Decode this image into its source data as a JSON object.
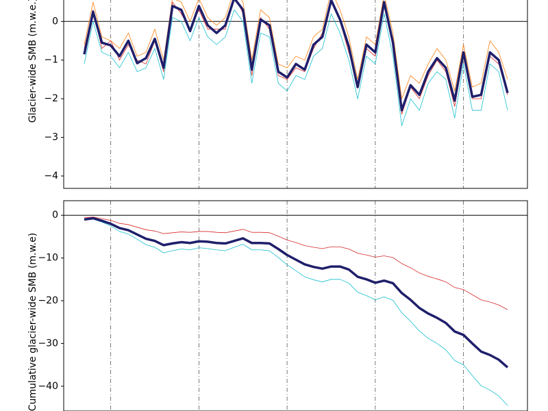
{
  "chart_data": [
    {
      "type": "line",
      "ylabel": "Glacier-wide SMB (m.w.e.)",
      "categories": [
        null,
        null,
        null,
        null,
        null,
        null,
        null,
        null,
        null,
        null,
        null,
        null,
        null,
        null,
        null,
        null,
        null,
        null,
        null,
        null,
        null,
        null,
        null,
        null,
        null,
        null,
        null,
        null,
        null,
        null,
        null,
        null,
        null,
        null,
        null,
        null,
        null,
        null,
        null,
        null,
        null,
        null,
        null,
        null,
        null,
        null,
        null,
        null,
        null
      ],
      "ylim": [
        -4.32,
        0.59
      ],
      "yticks": [
        {
          "value": -4,
          "label": "−4"
        },
        {
          "value": -3,
          "label": "−3"
        },
        {
          "value": -2,
          "label": "−2"
        },
        {
          "value": -1,
          "label": "−1"
        },
        0
      ],
      "axhline": 0,
      "series": [
        {
          "color": "#ff7f0e",
          "width": 0.8,
          "values": [
            -0.6,
            0.5,
            -0.4,
            -0.5,
            -0.7,
            -0.3,
            -0.9,
            -0.8,
            -0.2,
            -1.0,
            0.6,
            0.5,
            0.0,
            0.6,
            0.1,
            -0.1,
            0.1,
            0.8,
            0.5,
            -1.0,
            0.3,
            0.1,
            -1.1,
            -1.2,
            -0.9,
            -1.0,
            -0.4,
            -0.2,
            0.8,
            0.3,
            -0.4,
            -1.5,
            -0.4,
            -0.6,
            0.7,
            -0.3,
            -2.0,
            -1.4,
            -1.6,
            -1.1,
            -0.7,
            -1.0,
            -1.8,
            -0.6,
            -1.7,
            -1.6,
            -0.5,
            -0.8,
            -1.5
          ]
        },
        {
          "color": "#17becf",
          "width": 0.8,
          "values": [
            -1.1,
            0.0,
            -0.8,
            -0.9,
            -1.2,
            -0.8,
            -1.3,
            -1.2,
            -0.7,
            -1.5,
            0.1,
            0.0,
            -0.5,
            0.1,
            -0.4,
            -0.6,
            -0.4,
            0.3,
            0.0,
            -1.6,
            -0.3,
            -0.4,
            -1.6,
            -1.8,
            -1.4,
            -1.5,
            -0.9,
            -0.7,
            0.2,
            -0.3,
            -1.0,
            -2.0,
            -0.9,
            -1.1,
            0.2,
            -0.9,
            -2.7,
            -2.0,
            -2.3,
            -1.6,
            -1.3,
            -1.5,
            -2.5,
            -1.1,
            -2.3,
            -2.3,
            -1.1,
            -1.3,
            -2.3
          ]
        },
        {
          "color": "#d62728",
          "width": 0.8,
          "values": [
            -0.7,
            0.3,
            -0.7,
            -0.5,
            -1.0,
            -0.6,
            -1.0,
            -1.1,
            -0.5,
            -1.3,
            0.5,
            0.2,
            -0.2,
            0.3,
            -0.2,
            -0.2,
            -0.2,
            0.7,
            0.2,
            -1.4,
            0.1,
            -0.2,
            -1.4,
            -1.5,
            -1.2,
            -1.3,
            -0.7,
            -0.3,
            0.6,
            0.0,
            -0.8,
            -1.6,
            -0.7,
            -0.9,
            0.4,
            -0.6,
            -2.4,
            -1.7,
            -2.0,
            -1.4,
            -1.0,
            -1.3,
            -2.2,
            -0.9,
            -2.0,
            -2.0,
            -0.9,
            -1.1,
            -1.9
          ]
        },
        {
          "color": "#1f1f6b",
          "width": 3.5,
          "values": [
            -0.85,
            0.25,
            -0.55,
            -0.62,
            -0.9,
            -0.5,
            -1.08,
            -0.95,
            -0.45,
            -1.2,
            0.4,
            0.3,
            -0.25,
            0.4,
            -0.1,
            -0.3,
            -0.1,
            0.6,
            0.3,
            -1.25,
            0.05,
            -0.1,
            -1.3,
            -1.45,
            -1.1,
            -1.25,
            -0.6,
            -0.4,
            0.55,
            0.05,
            -0.65,
            -1.7,
            -0.6,
            -0.8,
            0.5,
            -0.55,
            -2.3,
            -1.65,
            -1.9,
            -1.3,
            -0.95,
            -1.2,
            -2.05,
            -0.8,
            -1.95,
            -1.9,
            -0.8,
            -1.0,
            -1.85
          ]
        }
      ]
    },
    {
      "type": "line",
      "ylabel": "Cumulative glacier-wide SMB (m.w.e)",
      "categories": [
        null,
        null,
        null,
        null,
        null,
        null,
        null,
        null,
        null,
        null,
        null,
        null,
        null,
        null,
        null,
        null,
        null,
        null,
        null,
        null,
        null,
        null,
        null,
        null,
        null,
        null,
        null,
        null,
        null,
        null,
        null,
        null,
        null,
        null,
        null,
        null,
        null,
        null,
        null,
        null,
        null,
        null,
        null,
        null,
        null,
        null,
        null,
        null,
        null
      ],
      "ylim": [
        -45.8,
        3.4
      ],
      "yticks": [
        {
          "value": -40,
          "label": "−40"
        },
        {
          "value": -30,
          "label": "−30"
        },
        {
          "value": -20,
          "label": "−20"
        },
        {
          "value": -10,
          "label": "−10"
        },
        0
      ],
      "axhline": 0,
      "series": [
        {
          "color": "#d62728",
          "width": 0.8,
          "values": [
            -0.6,
            -0.4,
            -0.8,
            -1.2,
            -1.9,
            -2.2,
            -2.8,
            -3.4,
            -3.7,
            -4.3,
            -4.1,
            -3.9,
            -4.0,
            -3.8,
            -3.8,
            -4.0,
            -4.1,
            -3.7,
            -3.3,
            -4.0,
            -4.0,
            -4.1,
            -4.9,
            -5.8,
            -6.4,
            -7.1,
            -7.5,
            -7.8,
            -7.4,
            -7.4,
            -7.9,
            -8.9,
            -9.3,
            -9.8,
            -9.5,
            -9.9,
            -11.3,
            -12.3,
            -13.5,
            -14.3,
            -14.9,
            -15.6,
            -16.9,
            -17.4,
            -18.6,
            -19.8,
            -20.3,
            -21.0,
            -22.1
          ]
        },
        {
          "color": "#17becf",
          "width": 0.8,
          "values": [
            -1.2,
            -0.9,
            -1.6,
            -2.5,
            -3.8,
            -4.4,
            -5.6,
            -6.9,
            -7.5,
            -8.8,
            -8.3,
            -7.9,
            -8.1,
            -7.6,
            -7.8,
            -8.1,
            -8.3,
            -7.5,
            -6.8,
            -8.1,
            -8.1,
            -8.3,
            -9.9,
            -11.6,
            -13.0,
            -14.4,
            -15.1,
            -15.6,
            -15.0,
            -15.0,
            -15.9,
            -18.0,
            -18.8,
            -19.8,
            -19.1,
            -19.9,
            -22.8,
            -24.8,
            -27.1,
            -28.8,
            -30.0,
            -31.5,
            -34.0,
            -35.0,
            -37.5,
            -39.9,
            -40.9,
            -42.3,
            -44.5
          ]
        },
        {
          "color": "#1f1f6b",
          "width": 3.5,
          "values": [
            -1,
            -0.7,
            -1.3,
            -2,
            -3,
            -3.5,
            -4.5,
            -5.5,
            -6,
            -7,
            -6.6,
            -6.3,
            -6.5,
            -6.1,
            -6.2,
            -6.5,
            -6.6,
            -6,
            -5.4,
            -6.5,
            -6.5,
            -6.6,
            -7.9,
            -9.3,
            -10.4,
            -11.5,
            -12.1,
            -12.5,
            -12,
            -12,
            -12.7,
            -14.4,
            -15,
            -15.8,
            -15.3,
            -15.9,
            -18.2,
            -19.8,
            -21.7,
            -23,
            -24,
            -25.2,
            -27.2,
            -28,
            -30,
            -31.9,
            -32.7,
            -33.8,
            -35.6
          ]
        }
      ]
    }
  ]
}
